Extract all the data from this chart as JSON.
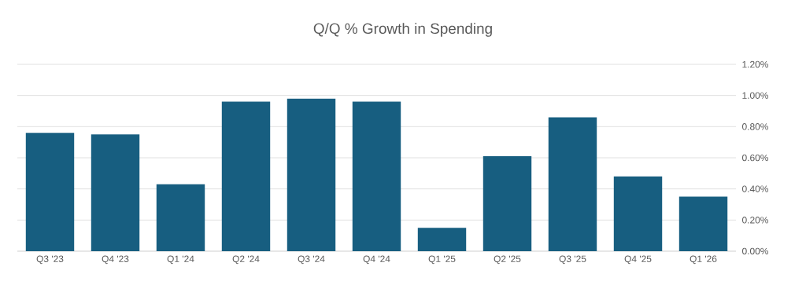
{
  "chart_data": {
    "type": "bar",
    "title": "Q/Q % Growth in Spending",
    "categories": [
      "Q3 '23",
      "Q4 '23",
      "Q1 '24",
      "Q2 '24",
      "Q3 '24",
      "Q4 '24",
      "Q1 '25",
      "Q2 '25",
      "Q3 '25",
      "Q4 '25",
      "Q1 '26"
    ],
    "values": [
      0.76,
      0.75,
      0.43,
      0.96,
      0.98,
      0.96,
      0.15,
      0.61,
      0.86,
      0.48,
      0.35
    ],
    "color": "#175e80",
    "ylim": [
      0,
      1.2
    ],
    "yticks": [
      {
        "value": 0,
        "label": "0.00%"
      },
      {
        "value": 0.2,
        "label": "0.20%"
      },
      {
        "value": 0.4,
        "label": "0.40%"
      },
      {
        "value": 0.6,
        "label": "0.60%"
      },
      {
        "value": 0.8,
        "label": "0.80%"
      },
      {
        "value": 1.0,
        "label": "1.00%"
      },
      {
        "value": 1.2,
        "label": "1.20%"
      }
    ],
    "grid": "y"
  }
}
